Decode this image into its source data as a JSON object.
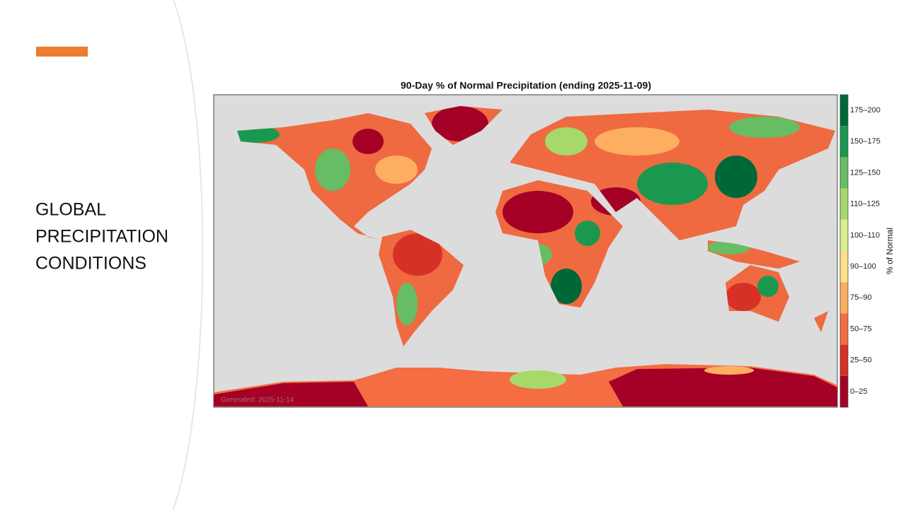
{
  "slide": {
    "title_lines": [
      "GLOBAL",
      "PRECIPITATION",
      "CONDITIONS"
    ]
  },
  "map": {
    "title": "90-Day % of Normal Precipitation (ending 2025-11-09)",
    "colorbar_label": "% of Normal",
    "footer": "Generated: 2025-11-14",
    "legend": [
      {
        "label": "175–200",
        "color": "#006837"
      },
      {
        "label": "150–175",
        "color": "#1a9850"
      },
      {
        "label": "125–150",
        "color": "#66bd63"
      },
      {
        "label": "110–125",
        "color": "#a6d96a"
      },
      {
        "label": "100–110",
        "color": "#d9ef8b"
      },
      {
        "label": "90–100",
        "color": "#fee08b"
      },
      {
        "label": "75–90",
        "color": "#fdae61"
      },
      {
        "label": "50–75",
        "color": "#f46d43"
      },
      {
        "label": "25–50",
        "color": "#d73027"
      },
      {
        "label": "0–25",
        "color": "#a50026"
      }
    ]
  }
}
